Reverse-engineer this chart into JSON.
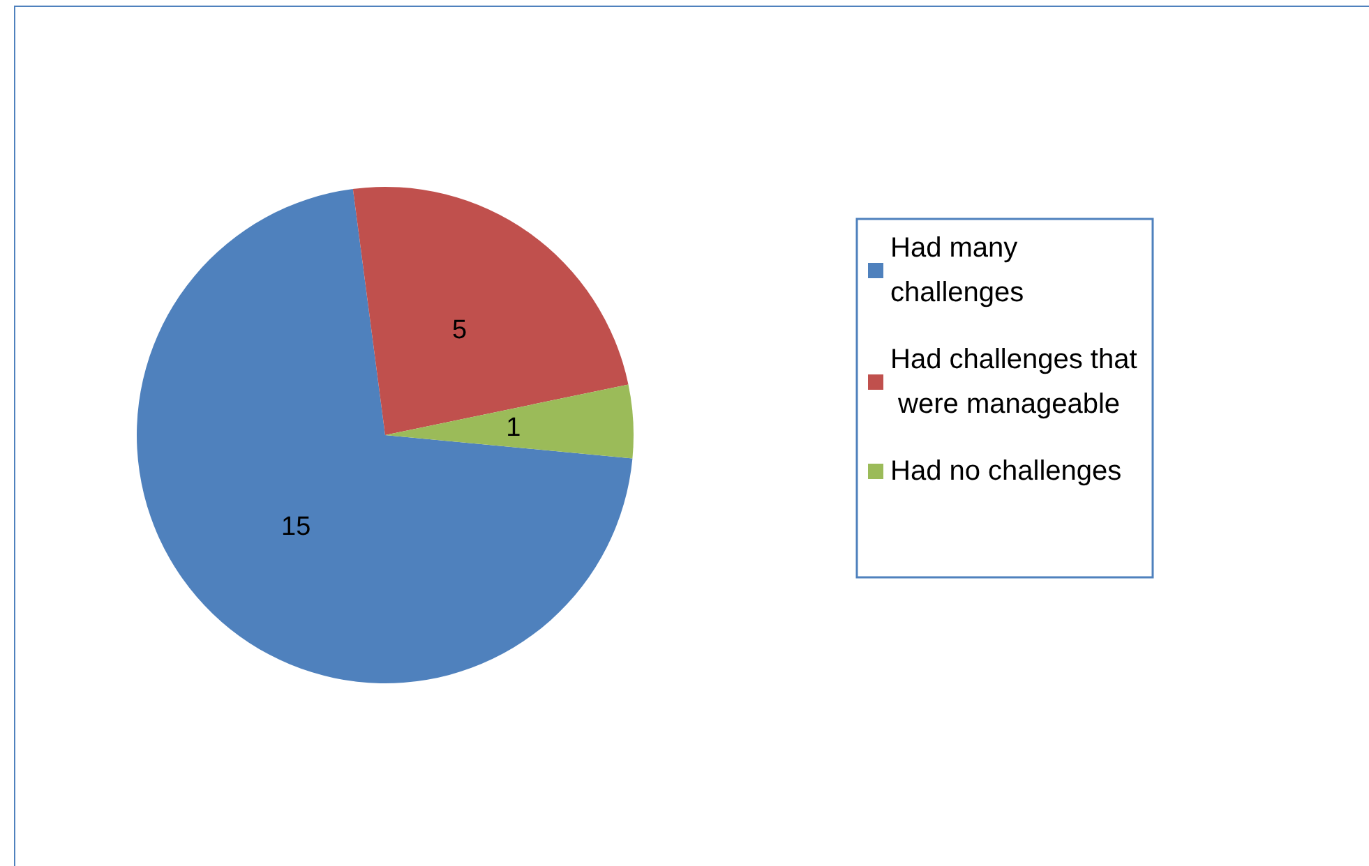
{
  "chart_data": {
    "type": "pie",
    "categories": [
      "Had many challenges",
      "Had challenges that were manageable",
      "Had no challenges"
    ],
    "values": [
      15,
      5,
      1
    ],
    "colors": [
      "#4f81bd",
      "#c0504d",
      "#9bbb59"
    ],
    "data_labels": true,
    "legend": "right"
  }
}
